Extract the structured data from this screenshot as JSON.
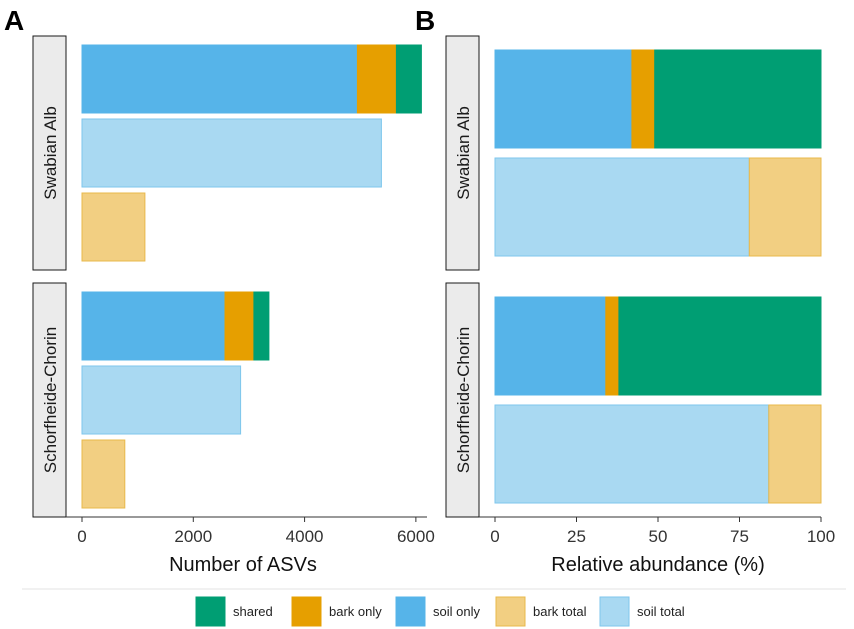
{
  "chart_data": [
    {
      "panel": "A",
      "type": "bar",
      "orientation": "horizontal",
      "stacked": true,
      "xlabel": "Number of ASVs",
      "xlim": [
        0,
        6200
      ],
      "ticks": [
        0,
        2000,
        4000,
        6000
      ],
      "tick_labels": [
        "0",
        "2000",
        "4000",
        "6000"
      ],
      "facets": [
        {
          "label": "Swabian Alb",
          "bars": [
            {
              "row": "combined",
              "segments": [
                {
                  "category": "soil only",
                  "value": 4950
                },
                {
                  "category": "bark only",
                  "value": 700
                },
                {
                  "category": "shared",
                  "value": 450
                }
              ]
            },
            {
              "row": "soil total",
              "segments": [
                {
                  "category": "soil total",
                  "value": 5380
                }
              ]
            },
            {
              "row": "bark total",
              "segments": [
                {
                  "category": "bark total",
                  "value": 1130
                }
              ]
            }
          ]
        },
        {
          "label": "Schorfheide-Chorin",
          "bars": [
            {
              "row": "combined",
              "segments": [
                {
                  "category": "soil only",
                  "value": 2570
                },
                {
                  "category": "bark only",
                  "value": 520
                },
                {
                  "category": "shared",
                  "value": 270
                }
              ]
            },
            {
              "row": "soil total",
              "segments": [
                {
                  "category": "soil total",
                  "value": 2850
                }
              ]
            },
            {
              "row": "bark total",
              "segments": [
                {
                  "category": "bark total",
                  "value": 770
                }
              ]
            }
          ]
        }
      ]
    },
    {
      "panel": "B",
      "type": "bar",
      "orientation": "horizontal",
      "stacked": true,
      "xlabel": "Relative abundance (%)",
      "xlim": [
        0,
        100
      ],
      "ticks": [
        0,
        25,
        50,
        75,
        100
      ],
      "tick_labels": [
        "0",
        "25",
        "50",
        "75",
        "100"
      ],
      "facets": [
        {
          "label": "Swabian Alb",
          "bars": [
            {
              "row": "combined",
              "segments": [
                {
                  "category": "soil only",
                  "value": 42
                },
                {
                  "category": "bark only",
                  "value": 7
                },
                {
                  "category": "shared",
                  "value": 51
                }
              ]
            },
            {
              "row": "totals",
              "segments": [
                {
                  "category": "soil total",
                  "value": 78
                },
                {
                  "category": "bark total",
                  "value": 22
                }
              ]
            }
          ]
        },
        {
          "label": "Schorfheide-Chorin",
          "bars": [
            {
              "row": "combined",
              "segments": [
                {
                  "category": "soil only",
                  "value": 34
                },
                {
                  "category": "bark only",
                  "value": 4
                },
                {
                  "category": "shared",
                  "value": 62
                }
              ]
            },
            {
              "row": "totals",
              "segments": [
                {
                  "category": "soil total",
                  "value": 84
                },
                {
                  "category": "bark total",
                  "value": 16
                }
              ]
            }
          ]
        }
      ]
    }
  ],
  "legend": [
    {
      "label": "shared",
      "color": "#009E73",
      "stroke": "#009E73"
    },
    {
      "label": "bark only",
      "color": "#E69F00",
      "stroke": "#E69F00"
    },
    {
      "label": "soil only",
      "color": "#56B4E9",
      "stroke": "#56B4E9"
    },
    {
      "label": "bark total",
      "color": "#F2CF82",
      "stroke": "#E8B84B"
    },
    {
      "label": "soil total",
      "color": "#A9D9F2",
      "stroke": "#7EC6EC"
    }
  ],
  "strip_fill": "#EBEBEB"
}
